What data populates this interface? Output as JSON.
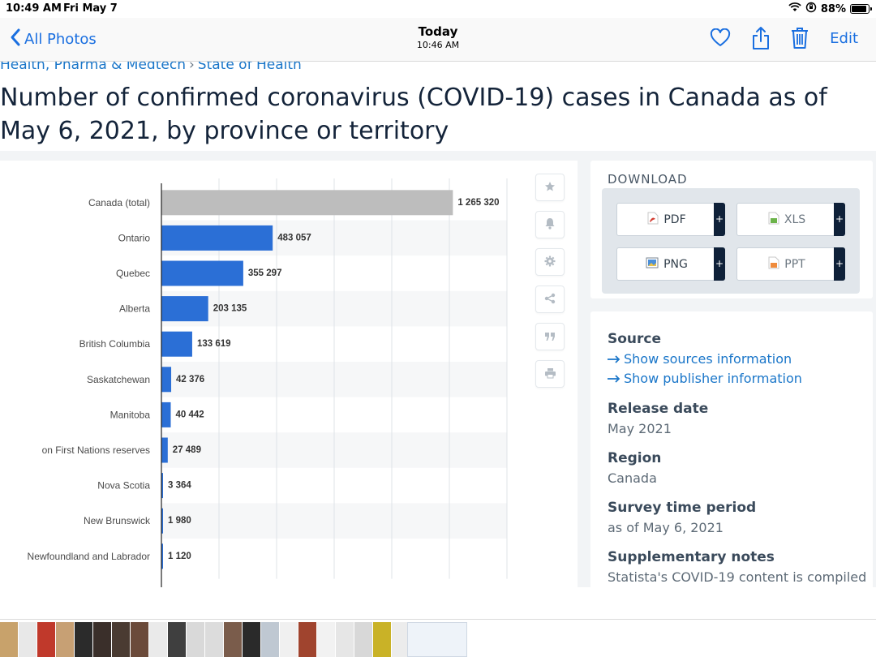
{
  "status_bar": {
    "time": "10:49 AM",
    "date": "Fri May 7",
    "battery": "88%",
    "battery_level": 0.88
  },
  "nav": {
    "back_label": "All Photos",
    "title": "Today",
    "subtitle": "10:46 AM",
    "edit_label": "Edit",
    "icons": [
      "heart-icon",
      "share-icon",
      "trash-icon"
    ]
  },
  "page": {
    "breadcrumb": [
      "Health, Pharma & Medtech",
      "State of Health"
    ],
    "title": "Number of confirmed coronavirus (COVID-19) cases in Canada as of May 6, 2021, by province or territory"
  },
  "chart_data": {
    "type": "bar",
    "orientation": "horizontal",
    "categories": [
      "Canada (total)",
      "Ontario",
      "Quebec",
      "Alberta",
      "British Columbia",
      "Saskatchewan",
      "Manitoba",
      "on First Nations reserves",
      "Nova Scotia",
      "New Brunswick",
      "Newfoundland and Labrador"
    ],
    "values": [
      1265320,
      483057,
      355297,
      203135,
      133619,
      42376,
      40442,
      27489,
      3364,
      1980,
      1120
    ],
    "value_labels": [
      "1 265 320",
      "483 057",
      "355 297",
      "203 135",
      "133 619",
      "42 376",
      "40 442",
      "27 489",
      "3 364",
      "1 980",
      "1 120"
    ],
    "highlight_color": "#bdbdbd",
    "bar_color": "#2b6fd6",
    "xlim": [
      0,
      1500000
    ],
    "grid": true
  },
  "toolbar": {
    "icons": [
      "star-icon",
      "bell-icon",
      "gear-icon",
      "share-nodes-icon",
      "quote-icon",
      "print-icon"
    ]
  },
  "download": {
    "title": "DOWNLOAD",
    "buttons": [
      {
        "label": "PDF",
        "plus": "+"
      },
      {
        "label": "XLS",
        "plus": "+"
      },
      {
        "label": "PNG",
        "plus": "+"
      },
      {
        "label": "PPT",
        "plus": "+"
      }
    ]
  },
  "info": {
    "source_label": "Source",
    "source_links": [
      "Show sources information",
      "Show publisher information"
    ],
    "release_label": "Release date",
    "release_value": "May 2021",
    "region_label": "Region",
    "region_value": "Canada",
    "survey_label": "Survey time period",
    "survey_value": "as of May 6, 2021",
    "notes_label": "Supplementary notes",
    "notes_value": "Statista's COVID-19 content is compiled"
  }
}
